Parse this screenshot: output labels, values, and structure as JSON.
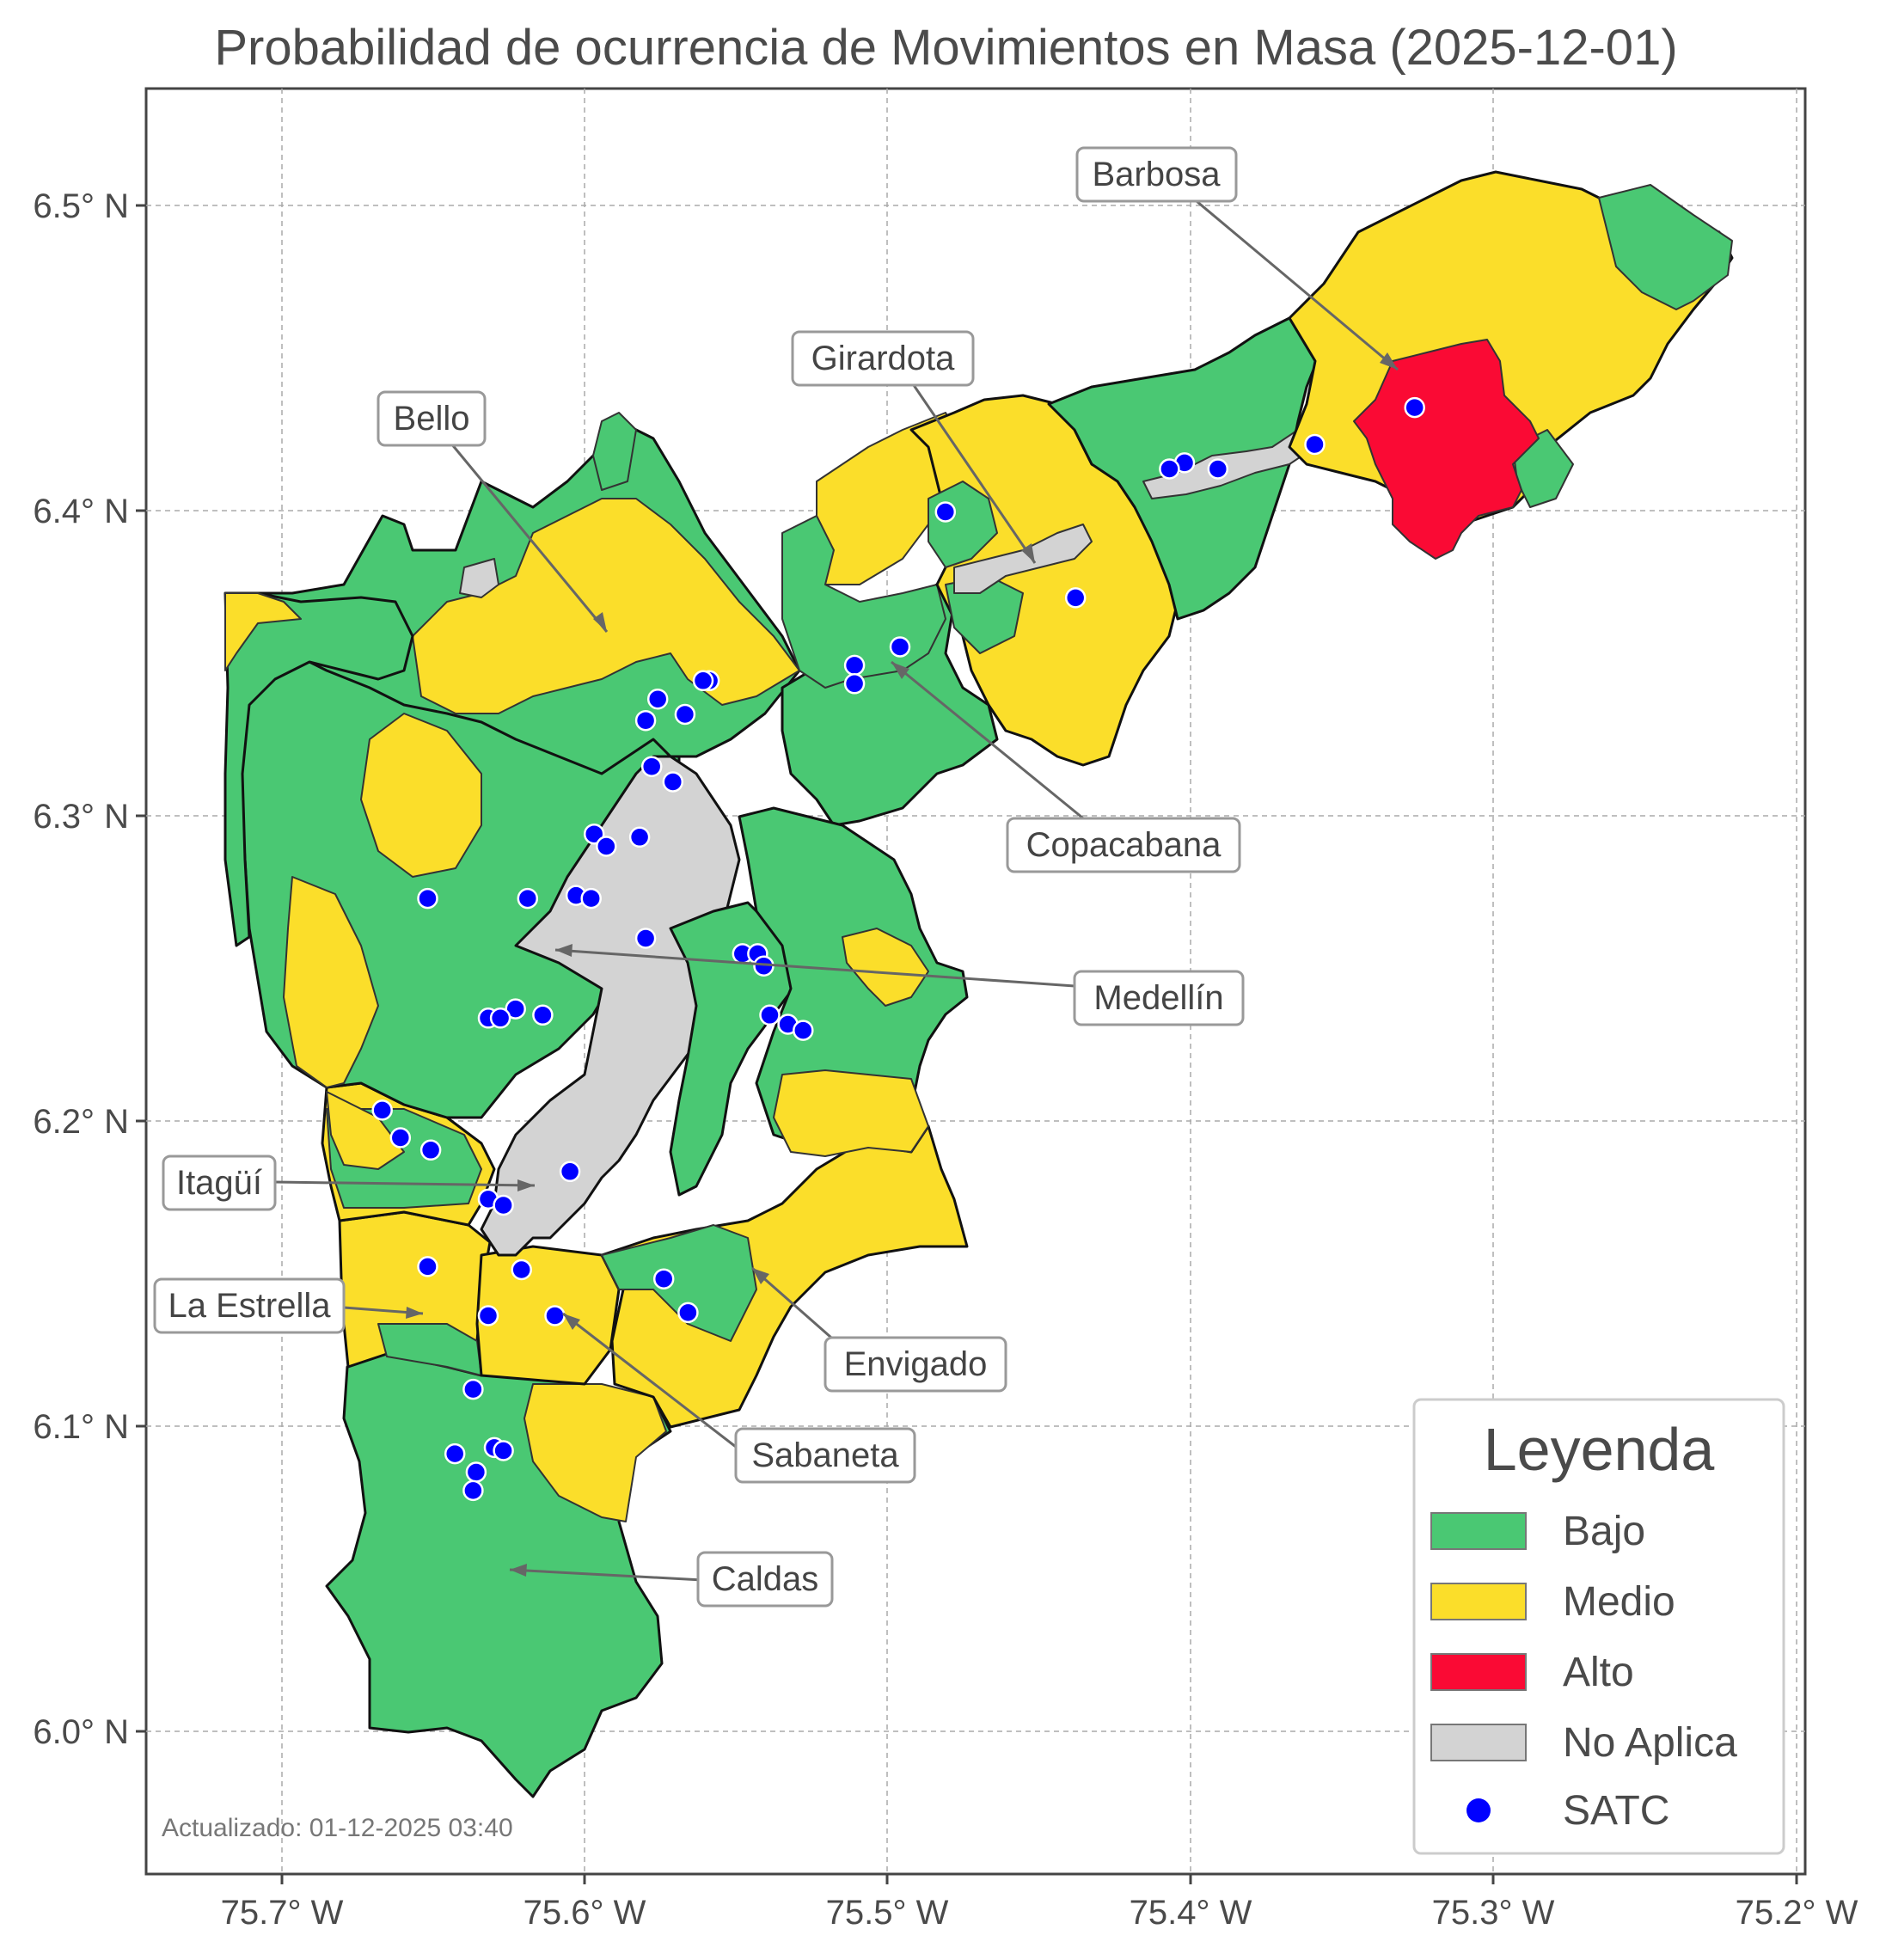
{
  "title": "Probabilidad de ocurrencia de Movimientos en Masa (2025-12-01)",
  "axes": {
    "x_ticks": [
      "75.7° W",
      "75.6° W",
      "75.5° W",
      "75.4° W",
      "75.3° W",
      "75.2° W"
    ],
    "y_ticks": [
      "6.5° N",
      "6.4° N",
      "6.3° N",
      "6.2° N",
      "6.1° N",
      "6.0° N"
    ],
    "x_range_deg_w": [
      75.745,
      75.197
    ],
    "y_range_deg_n": [
      5.955,
      6.537
    ],
    "grid": "dashed"
  },
  "municipalities": [
    {
      "name": "Barbosa"
    },
    {
      "name": "Girardota"
    },
    {
      "name": "Bello"
    },
    {
      "name": "Copacabana"
    },
    {
      "name": "Medellín"
    },
    {
      "name": "Itagüí"
    },
    {
      "name": "La Estrella"
    },
    {
      "name": "Envigado"
    },
    {
      "name": "Sabaneta"
    },
    {
      "name": "Caldas"
    }
  ],
  "legend": {
    "title": "Leyenda",
    "items": [
      {
        "label": "Bajo",
        "color": "#4ac873"
      },
      {
        "label": "Medio",
        "color": "#fbde2a"
      },
      {
        "label": "Alto",
        "color": "#fa0a34"
      },
      {
        "label": "No Aplica",
        "color": "#d3d3d3"
      },
      {
        "label": "SATC",
        "color": "#0000ff"
      }
    ]
  },
  "satc_stations": [
    [
      -75.326,
      6.433
    ],
    [
      -75.359,
      6.421
    ],
    [
      -75.391,
      6.413
    ],
    [
      -75.402,
      6.415
    ],
    [
      -75.407,
      6.413
    ],
    [
      -75.481,
      6.399
    ],
    [
      -75.438,
      6.371
    ],
    [
      -75.496,
      6.355
    ],
    [
      -75.511,
      6.349
    ],
    [
      -75.511,
      6.343
    ],
    [
      -75.559,
      6.344
    ],
    [
      -75.561,
      6.344
    ],
    [
      -75.576,
      6.338
    ],
    [
      -75.567,
      6.333
    ],
    [
      -75.58,
      6.331
    ],
    [
      -75.578,
      6.316
    ],
    [
      -75.571,
      6.311
    ],
    [
      -75.597,
      6.294
    ],
    [
      -75.593,
      6.29
    ],
    [
      -75.582,
      6.293
    ],
    [
      -75.652,
      6.273
    ],
    [
      -75.619,
      6.273
    ],
    [
      -75.603,
      6.274
    ],
    [
      -75.598,
      6.273
    ],
    [
      -75.58,
      6.26
    ],
    [
      -75.548,
      6.255
    ],
    [
      -75.543,
      6.255
    ],
    [
      -75.541,
      6.251
    ],
    [
      -75.539,
      6.235
    ],
    [
      -75.533,
      6.232
    ],
    [
      -75.528,
      6.23
    ],
    [
      -75.623,
      6.237
    ],
    [
      -75.632,
      6.234
    ],
    [
      -75.628,
      6.234
    ],
    [
      -75.614,
      6.235
    ],
    [
      -75.667,
      6.204
    ],
    [
      -75.661,
      6.195
    ],
    [
      -75.651,
      6.191
    ],
    [
      -75.605,
      6.184
    ],
    [
      -75.632,
      6.175
    ],
    [
      -75.627,
      6.173
    ],
    [
      -75.621,
      6.152
    ],
    [
      -75.652,
      6.153
    ],
    [
      -75.632,
      6.137
    ],
    [
      -75.61,
      6.137
    ],
    [
      -75.574,
      6.149
    ],
    [
      -75.566,
      6.138
    ],
    [
      -75.637,
      6.113
    ],
    [
      -75.643,
      6.092
    ],
    [
      -75.63,
      6.094
    ],
    [
      -75.627,
      6.093
    ],
    [
      -75.636,
      6.086
    ],
    [
      -75.637,
      6.08
    ]
  ],
  "footnote": "Actualizado: 01-12-2025 03:40"
}
